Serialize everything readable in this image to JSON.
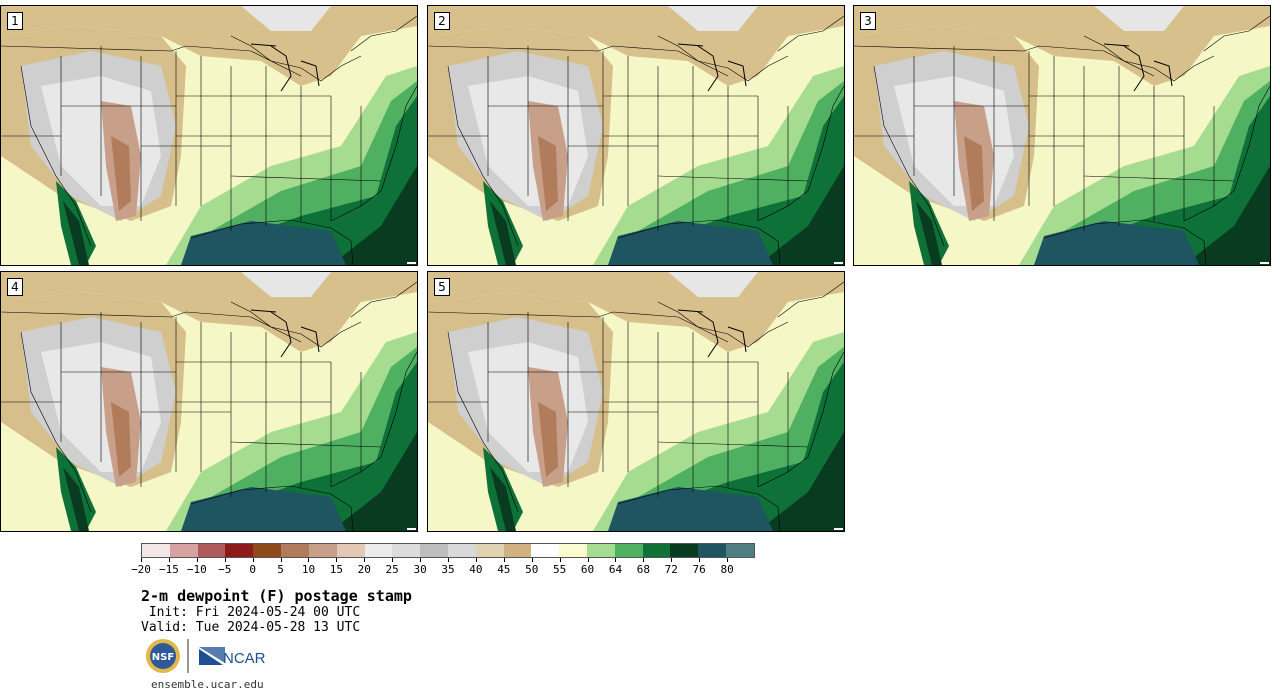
{
  "panels": [
    {
      "label": "1"
    },
    {
      "label": "2"
    },
    {
      "label": "3"
    },
    {
      "label": "4"
    },
    {
      "label": "5"
    }
  ],
  "colorbar": {
    "colors": [
      "#f3e6e6",
      "#d7a2a2",
      "#b05b5b",
      "#8e1b1b",
      "#8d4a1b",
      "#b07c5c",
      "#c6a088",
      "#e3c8b6",
      "#ececec",
      "#dcdcdc",
      "#bdbdbd",
      "#d9d9d9",
      "#e0d3b2",
      "#cfb27f",
      "#ffffff",
      "#fbfbd2",
      "#a6dc8f",
      "#4fb062",
      "#0e7138",
      "#083b1f",
      "#1f5560",
      "#4f7f80"
    ],
    "tick_labels": [
      "−20",
      "−15",
      "−10",
      "−5",
      "0",
      "5",
      "10",
      "15",
      "20",
      "25",
      "30",
      "35",
      "40",
      "45",
      "50",
      "55",
      "60",
      "64",
      "68",
      "72",
      "76",
      "80"
    ]
  },
  "title": "2-m dewpoint (F) postage stamp",
  "init": " Init: Fri 2024-05-24 00 UTC",
  "valid": "Valid: Tue 2024-05-28 13 UTC",
  "logos": {
    "nsf": "NSF",
    "ncar": "NCAR"
  },
  "website": "ensemble.ucar.edu"
}
